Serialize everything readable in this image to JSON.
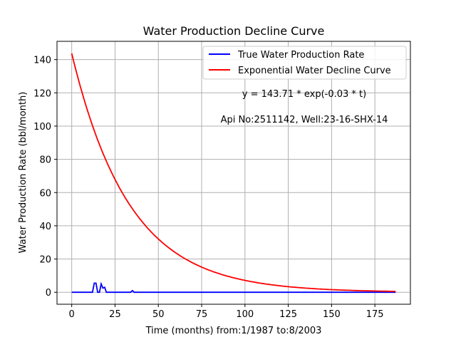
{
  "chart_data": {
    "type": "line",
    "title": "Water Production Decline Curve",
    "xlabel": "Time (months) from:1/1987 to:8/2003",
    "ylabel": "Water Production Rate (bbl/month)",
    "xlim": [
      -8.5,
      195.5
    ],
    "ylim": [
      -7.2,
      151
    ],
    "xticks": [
      0,
      25,
      50,
      75,
      100,
      125,
      150,
      175
    ],
    "yticks": [
      0,
      20,
      40,
      60,
      80,
      100,
      120,
      140
    ],
    "grid": true,
    "legend_position": "top-right",
    "series": [
      {
        "name": "True Water Production Rate",
        "color": "#0000ff",
        "x": [
          0,
          1,
          2,
          3,
          4,
          5,
          6,
          7,
          8,
          9,
          10,
          11,
          12,
          13,
          14,
          15,
          16,
          17,
          18,
          19,
          20,
          21,
          22,
          23,
          24,
          25,
          30,
          33,
          34,
          35,
          36,
          37,
          40,
          50,
          75,
          100,
          125,
          150,
          175,
          187
        ],
        "y": [
          0,
          0,
          0,
          0,
          0,
          0,
          0,
          0,
          0,
          0,
          0,
          0,
          0,
          5.5,
          5.5,
          0,
          0,
          5,
          2.5,
          3,
          0,
          0,
          0,
          0,
          0,
          0,
          0,
          0,
          0,
          1,
          0,
          0,
          0,
          0,
          0,
          0,
          0,
          0,
          0,
          0
        ]
      },
      {
        "name": "Exponential Water Decline Curve",
        "color": "#ff0000",
        "equation": {
          "a": 143.71,
          "b": 0.03
        },
        "x_range": [
          0,
          187
        ]
      }
    ],
    "annotations": [
      "y = 143.71 * exp(-0.03 * t)",
      "Api No:2511142, Well:23-16-SHX-14"
    ]
  }
}
